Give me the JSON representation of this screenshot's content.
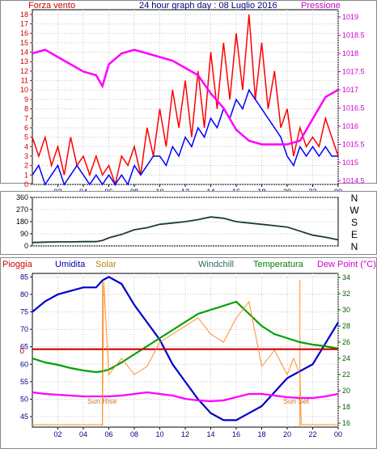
{
  "chart_data": [
    {
      "type": "line",
      "title": "24 hour graph day : 08 Luglio 2016",
      "left_label": "Forza vento",
      "right_label": "Pressione",
      "x_ticks": [
        "02",
        "04",
        "06",
        "08",
        "10",
        "12",
        "14",
        "16",
        "18",
        "20",
        "22",
        "00"
      ],
      "y_left_ticks": [
        "0",
        "1",
        "2",
        "3",
        "4",
        "5",
        "6",
        "7",
        "8",
        "9",
        "10",
        "11",
        "12",
        "13",
        "14",
        "15",
        "16",
        "17",
        "18"
      ],
      "y_right_ticks": [
        "1014.5",
        "1015",
        "1015.5",
        "1016",
        "1016.5",
        "1017",
        "1017.5",
        "1018",
        "1018.5",
        "1019"
      ],
      "ylim_left": [
        0,
        18.5
      ],
      "ylim_right": [
        1014.4,
        1019.2
      ],
      "grid": true,
      "series": [
        {
          "name": "Forza vento",
          "color": "#ff0000",
          "axis": "left",
          "x": [
            0,
            0.5,
            1,
            1.5,
            2,
            2.5,
            3,
            3.5,
            4,
            4.5,
            5,
            5.5,
            6,
            6.5,
            7,
            7.5,
            8,
            8.5,
            9,
            9.5,
            10,
            10.5,
            11,
            11.5,
            12,
            12.5,
            13,
            13.5,
            14,
            14.5,
            15,
            15.5,
            16,
            16.5,
            17,
            17.5,
            18,
            18.5,
            19,
            19.5,
            20,
            20.5,
            21,
            21.5,
            22,
            22.5,
            23,
            23.5,
            24
          ],
          "values": [
            5,
            3,
            5,
            2,
            4,
            1,
            5,
            2,
            3,
            1,
            3,
            1,
            2,
            0,
            3,
            2,
            4,
            1,
            6,
            3,
            8,
            4,
            10,
            6,
            11,
            5,
            12,
            6,
            14,
            8,
            15,
            9,
            16,
            10,
            18,
            9,
            15,
            8,
            12,
            6,
            8,
            3,
            6,
            4,
            5,
            4,
            7,
            5,
            3
          ]
        },
        {
          "name": "Raffica",
          "color": "#0000ff",
          "axis": "left",
          "x": [
            0,
            0.5,
            1,
            1.5,
            2,
            2.5,
            3,
            3.5,
            4,
            4.5,
            5,
            5.5,
            6,
            6.5,
            7,
            7.5,
            8,
            8.5,
            9,
            9.5,
            10,
            10.5,
            11,
            11.5,
            12,
            12.5,
            13,
            13.5,
            14,
            14.5,
            15,
            15.5,
            16,
            16.5,
            17,
            17.5,
            18,
            18.5,
            19,
            19.5,
            20,
            20.5,
            21,
            21.5,
            22,
            22.5,
            23,
            23.5,
            24
          ],
          "values": [
            1,
            2,
            0,
            1,
            2,
            0,
            1,
            2,
            1,
            0,
            1,
            0,
            1,
            0,
            1,
            0,
            2,
            1,
            2,
            3,
            3,
            2,
            4,
            3,
            5,
            4,
            6,
            5,
            7,
            6,
            8,
            7,
            9,
            8,
            10,
            9,
            8,
            7,
            6,
            5,
            3,
            2,
            4,
            3,
            4,
            3,
            4,
            3,
            3
          ]
        },
        {
          "name": "Pressione",
          "color": "#ff00ff",
          "axis": "right",
          "x": [
            0,
            1,
            2,
            3,
            4,
            5,
            5.5,
            6,
            7,
            8,
            9,
            10,
            11,
            12,
            13,
            14,
            15,
            16,
            17,
            18,
            19,
            20,
            21,
            22,
            23,
            24
          ],
          "values": [
            1018.0,
            1018.1,
            1017.9,
            1017.7,
            1017.5,
            1017.4,
            1017.1,
            1017.7,
            1018.0,
            1018.1,
            1018.0,
            1017.9,
            1017.8,
            1017.6,
            1017.4,
            1016.9,
            1016.5,
            1015.9,
            1015.6,
            1015.5,
            1015.5,
            1015.5,
            1015.6,
            1016.2,
            1016.8,
            1017.0
          ]
        }
      ]
    },
    {
      "type": "line",
      "y_ticks": [
        "0",
        "90",
        "180",
        "270",
        "360"
      ],
      "right_labels": [
        "N",
        "W",
        "S",
        "E",
        "N"
      ],
      "ylim": [
        0,
        360
      ],
      "grid": true,
      "series": [
        {
          "name": "Direzione vento",
          "color": "#1e3a3a",
          "x": [
            0,
            1,
            2,
            3,
            4,
            5,
            5.5,
            6,
            7,
            8,
            9,
            10,
            11,
            12,
            13,
            14,
            15,
            16,
            17,
            18,
            19,
            20,
            21,
            22,
            23,
            24
          ],
          "values": [
            25,
            28,
            30,
            30,
            32,
            32,
            40,
            60,
            85,
            120,
            135,
            160,
            170,
            180,
            195,
            215,
            205,
            180,
            170,
            160,
            150,
            140,
            110,
            80,
            65,
            45
          ]
        }
      ]
    },
    {
      "type": "line",
      "legend": [
        "Pioggia",
        "Umidita",
        "Solar",
        "Windchill",
        "Temperatura",
        "Dew Point (°C)"
      ],
      "y_left_ticks": [
        "45",
        "50",
        "55",
        "60",
        "65",
        "70",
        "75",
        "80",
        "85"
      ],
      "y_right_ticks": [
        "16",
        "18",
        "20",
        "22",
        "24",
        "26",
        "28",
        "30",
        "32",
        "34"
      ],
      "rain_label": "0",
      "ylim_left": [
        42,
        86
      ],
      "ylim_right": [
        15.5,
        34.5
      ],
      "grid": true,
      "annotations": [
        "Sun Rise",
        "Sun Set"
      ],
      "series": [
        {
          "name": "Umidita",
          "color": "#0000cc",
          "axis": "left",
          "x": [
            0,
            1,
            2,
            3,
            4,
            5,
            5.5,
            6,
            7,
            8,
            9,
            10,
            11,
            12,
            13,
            14,
            15,
            16,
            17,
            18,
            19,
            20,
            21,
            22,
            23,
            24
          ],
          "values": [
            75,
            78,
            80,
            81,
            82,
            82,
            84,
            85,
            83,
            77,
            72,
            67,
            60,
            55,
            50,
            46,
            44,
            44,
            46,
            48,
            52,
            56,
            58,
            60,
            66,
            72
          ]
        },
        {
          "name": "Temperatura",
          "color": "#00a000",
          "axis": "right",
          "x": [
            0,
            1,
            2,
            3,
            4,
            5,
            5.5,
            6,
            7,
            8,
            9,
            10,
            11,
            12,
            13,
            14,
            15,
            16,
            17,
            18,
            19,
            20,
            21,
            22,
            23,
            24
          ],
          "values": [
            24.0,
            23.5,
            23.2,
            22.8,
            22.5,
            22.3,
            22.4,
            22.6,
            23.5,
            24.5,
            25.5,
            26.5,
            27.5,
            28.5,
            29.5,
            30.0,
            30.5,
            31.0,
            29.5,
            28.0,
            27.0,
            26.5,
            26.0,
            25.7,
            25.5,
            25.2
          ]
        },
        {
          "name": "Dew Point",
          "color": "#ff00ff",
          "axis": "right",
          "x": [
            0,
            1,
            2,
            3,
            4,
            5,
            5.5,
            6,
            7,
            8,
            9,
            10,
            11,
            12,
            13,
            14,
            15,
            16,
            17,
            18,
            19,
            20,
            21,
            22,
            23,
            24
          ],
          "values": [
            19.8,
            19.6,
            19.5,
            19.4,
            19.3,
            19.3,
            19.3,
            19.3,
            19.4,
            19.6,
            19.8,
            19.6,
            19.4,
            19.0,
            18.8,
            18.7,
            18.8,
            19.2,
            19.6,
            19.6,
            19.4,
            19.2,
            19.1,
            19.1,
            19.3,
            19.6
          ]
        },
        {
          "name": "Pioggia",
          "color": "#cc0000",
          "axis": "left",
          "x": [
            0,
            24
          ],
          "values": [
            64.3,
            64.3
          ]
        },
        {
          "name": "Solar",
          "color": "#ff8c28",
          "axis": "right",
          "x": [
            0,
            5,
            5.5,
            5.6,
            6,
            7,
            8,
            9,
            10,
            11,
            12,
            13,
            14,
            15,
            16,
            17,
            18,
            19,
            20,
            20.5,
            21,
            21.1,
            24
          ],
          "values": [
            15.8,
            15.8,
            15.8,
            33.5,
            22,
            24,
            22,
            23,
            26,
            27,
            28,
            29,
            27,
            26,
            29,
            31,
            23,
            25,
            22,
            24,
            22,
            15.8,
            15.8
          ]
        }
      ]
    }
  ]
}
